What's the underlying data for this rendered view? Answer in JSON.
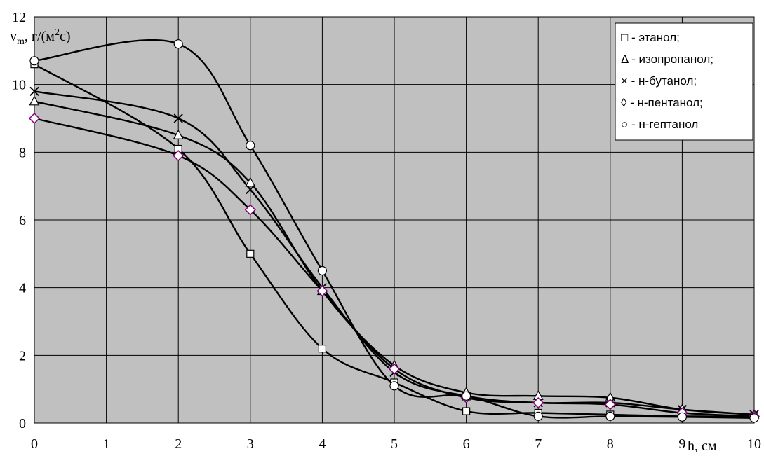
{
  "chart_data": {
    "type": "line",
    "ylabel": {
      "base": "v",
      "sub": "m",
      "rest_before_sup": ", г/(м",
      "sup": "2",
      "rest_after_sup": "с)"
    },
    "xlabel": "h, см",
    "xlim": [
      0,
      10
    ],
    "ylim": [
      0,
      12
    ],
    "x_ticks": [
      "0",
      "1",
      "2",
      "3",
      "4",
      "5",
      "6",
      "7",
      "8",
      "9",
      "10"
    ],
    "y_ticks": [
      "0",
      "2",
      "4",
      "6",
      "8",
      "10",
      "12"
    ],
    "grid": true,
    "legend_position": "top-right",
    "series": [
      {
        "name": "□ - этанол;",
        "marker": "square",
        "x": [
          0,
          2,
          3,
          4,
          5,
          6,
          7,
          8,
          9,
          10
        ],
        "y": [
          10.6,
          8.1,
          5.0,
          2.2,
          1.2,
          0.35,
          0.3,
          0.25,
          0.2,
          0.2
        ]
      },
      {
        "name": "Δ - изопропанол;",
        "marker": "triangle",
        "x": [
          0,
          2,
          3,
          4,
          5,
          6,
          7,
          8,
          9,
          10
        ],
        "y": [
          9.5,
          8.5,
          7.1,
          3.9,
          1.7,
          0.9,
          0.8,
          0.75,
          0.4,
          0.25
        ]
      },
      {
        "name": "× - н-бутанол;",
        "marker": "x",
        "x": [
          0,
          2,
          3,
          4,
          5,
          6,
          7,
          8,
          9,
          10
        ],
        "y": [
          9.8,
          9.0,
          6.9,
          4.0,
          1.5,
          0.8,
          0.6,
          0.6,
          0.4,
          0.25
        ]
      },
      {
        "name": "◊ - н-пентанол;",
        "marker": "diamond",
        "x": [
          0,
          2,
          3,
          4,
          5,
          6,
          7,
          8,
          9,
          10
        ],
        "y": [
          9.0,
          7.9,
          6.3,
          3.9,
          1.6,
          0.75,
          0.6,
          0.55,
          0.3,
          0.2
        ]
      },
      {
        "name": "○ - н-гептанол",
        "marker": "circle",
        "x": [
          0,
          2,
          3,
          4,
          5,
          6,
          7,
          8,
          9,
          10
        ],
        "y": [
          10.7,
          11.2,
          8.2,
          4.5,
          1.1,
          0.8,
          0.2,
          0.2,
          0.18,
          0.15
        ]
      }
    ],
    "colors": {
      "plot_bg": "#c0c0c0",
      "grid": "#000000",
      "line": "#000000",
      "diamond_marker": "#800080",
      "legend_bg": "#ffffff"
    }
  }
}
